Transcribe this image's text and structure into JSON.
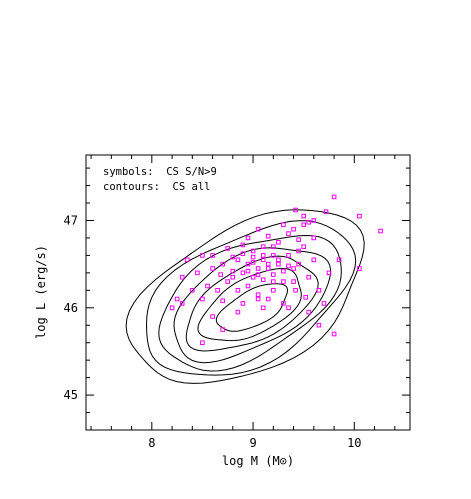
{
  "chart_data": {
    "type": "scatter",
    "title": "",
    "xlabel": "log M (M⊙)",
    "ylabel": "log L (erg/s)",
    "xlim": [
      7.35,
      10.55
    ],
    "ylim": [
      44.6,
      47.75
    ],
    "x_ticks": [
      {
        "value": 8,
        "label": "8"
      },
      {
        "value": 9,
        "label": "9"
      },
      {
        "value": 10,
        "label": "10"
      }
    ],
    "y_ticks": [
      {
        "value": 45,
        "label": "45"
      },
      {
        "value": 46,
        "label": "46"
      },
      {
        "value": 47,
        "label": "47"
      }
    ],
    "x_minor_step": 0.2,
    "y_minor_step": 0.2,
    "grid": false,
    "annotations": [
      "symbols:  CS S/N>9",
      "contours:  CS all"
    ],
    "colors": {
      "symbols": "#ff00ff",
      "contours": "#000000"
    },
    "series": [
      {
        "kind": "points",
        "marker": "open-square",
        "points": [
          [
            9.8,
            47.27
          ],
          [
            9.72,
            47.1
          ],
          [
            10.26,
            46.88
          ],
          [
            10.05,
            47.05
          ],
          [
            9.5,
            47.05
          ],
          [
            9.42,
            47.12
          ],
          [
            9.55,
            46.98
          ],
          [
            9.3,
            46.95
          ],
          [
            9.6,
            46.8
          ],
          [
            9.45,
            46.78
          ],
          [
            9.35,
            46.85
          ],
          [
            9.15,
            46.82
          ],
          [
            9.05,
            46.9
          ],
          [
            9.2,
            46.7
          ],
          [
            9.1,
            46.6
          ],
          [
            9.0,
            46.65
          ],
          [
            8.9,
            46.72
          ],
          [
            8.85,
            46.55
          ],
          [
            8.95,
            46.5
          ],
          [
            9.05,
            46.45
          ],
          [
            9.15,
            46.5
          ],
          [
            9.25,
            46.55
          ],
          [
            9.35,
            46.6
          ],
          [
            9.45,
            46.5
          ],
          [
            9.3,
            46.42
          ],
          [
            9.2,
            46.38
          ],
          [
            9.1,
            46.32
          ],
          [
            9.0,
            46.35
          ],
          [
            8.9,
            46.4
          ],
          [
            8.8,
            46.42
          ],
          [
            8.7,
            46.5
          ],
          [
            8.6,
            46.45
          ],
          [
            8.75,
            46.3
          ],
          [
            8.65,
            46.2
          ],
          [
            8.55,
            46.25
          ],
          [
            8.85,
            46.2
          ],
          [
            8.95,
            46.25
          ],
          [
            9.05,
            46.15
          ],
          [
            9.2,
            46.2
          ],
          [
            9.4,
            46.3
          ],
          [
            9.55,
            46.35
          ],
          [
            9.6,
            46.55
          ],
          [
            9.65,
            46.2
          ],
          [
            9.7,
            46.05
          ],
          [
            9.3,
            46.05
          ],
          [
            9.1,
            46.0
          ],
          [
            8.9,
            46.05
          ],
          [
            8.7,
            46.08
          ],
          [
            8.5,
            46.1
          ],
          [
            8.4,
            46.2
          ],
          [
            8.3,
            46.35
          ],
          [
            8.35,
            46.55
          ],
          [
            8.5,
            46.6
          ],
          [
            8.75,
            46.68
          ],
          [
            8.95,
            46.8
          ],
          [
            9.25,
            46.75
          ],
          [
            8.8,
            46.58
          ],
          [
            8.9,
            46.62
          ],
          [
            9.0,
            46.58
          ],
          [
            9.1,
            46.55
          ],
          [
            9.2,
            46.6
          ],
          [
            9.0,
            46.52
          ],
          [
            8.95,
            46.42
          ],
          [
            9.05,
            46.38
          ],
          [
            9.15,
            46.45
          ],
          [
            9.25,
            46.5
          ],
          [
            9.35,
            46.48
          ],
          [
            9.4,
            46.45
          ],
          [
            9.1,
            46.7
          ],
          [
            8.8,
            46.35
          ],
          [
            8.68,
            46.38
          ],
          [
            8.6,
            46.6
          ],
          [
            8.45,
            46.4
          ],
          [
            8.25,
            46.1
          ],
          [
            8.2,
            46.0
          ],
          [
            8.3,
            46.05
          ],
          [
            9.45,
            46.65
          ],
          [
            9.5,
            46.7
          ],
          [
            9.2,
            46.3
          ],
          [
            9.3,
            46.3
          ],
          [
            9.42,
            46.2
          ],
          [
            9.52,
            46.12
          ],
          [
            8.6,
            45.9
          ],
          [
            8.7,
            45.75
          ],
          [
            8.5,
            45.6
          ],
          [
            8.85,
            45.95
          ],
          [
            9.05,
            46.1
          ],
          [
            9.15,
            46.1
          ],
          [
            9.55,
            45.95
          ],
          [
            9.8,
            45.7
          ],
          [
            9.65,
            45.8
          ],
          [
            9.35,
            46.0
          ],
          [
            10.05,
            46.45
          ],
          [
            9.85,
            46.55
          ],
          [
            9.75,
            46.4
          ],
          [
            9.5,
            46.95
          ],
          [
            9.6,
            47.0
          ],
          [
            9.4,
            46.9
          ]
        ]
      },
      {
        "kind": "contours",
        "levels": [
          {
            "center": [
              8.95,
              46.12
            ],
            "rx": 1.25,
            "ry": 0.82,
            "angle": 28
          },
          {
            "center": [
              8.95,
              46.1
            ],
            "rx": 1.12,
            "ry": 0.72,
            "angle": 28
          },
          {
            "center": [
              8.96,
              46.08
            ],
            "rx": 0.98,
            "ry": 0.62,
            "angle": 28
          },
          {
            "center": [
              8.97,
              46.06
            ],
            "rx": 0.84,
            "ry": 0.52,
            "angle": 28
          },
          {
            "center": [
              8.98,
              46.04
            ],
            "rx": 0.7,
            "ry": 0.42,
            "angle": 28
          },
          {
            "center": [
              8.99,
              46.02
            ],
            "rx": 0.55,
            "ry": 0.32,
            "angle": 28
          },
          {
            "center": [
              9.0,
              46.0
            ],
            "rx": 0.38,
            "ry": 0.2,
            "angle": 28
          }
        ]
      }
    ]
  }
}
